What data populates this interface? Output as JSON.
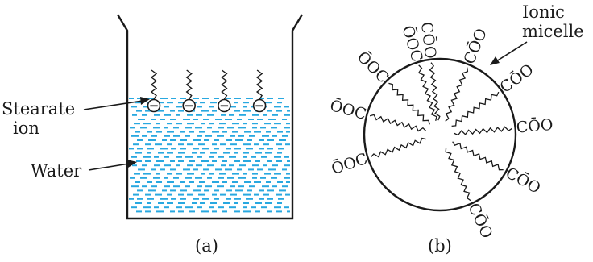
{
  "panel_a": {
    "caption": "(a)",
    "label_stearate_line1": "Stearate",
    "label_stearate_line2": "ion",
    "label_water": "Water",
    "ion_charge_symbol": "−",
    "water_color": "#29a8e0",
    "ion_count": 4
  },
  "panel_b": {
    "caption": "(b)",
    "label_micelle_line1": "Ionic",
    "label_micelle_line2": "micelle",
    "heads": [
      {
        "text": "CŌO"
      },
      {
        "text": "CŌO"
      },
      {
        "text": "CŌO"
      },
      {
        "text": "CŌO"
      },
      {
        "text": "CŌO"
      },
      {
        "text": "CŌO"
      },
      {
        "text": "ŌOC"
      },
      {
        "text": "ŌOC"
      },
      {
        "text": "ŌOC"
      },
      {
        "text": "ŌOC"
      }
    ]
  }
}
